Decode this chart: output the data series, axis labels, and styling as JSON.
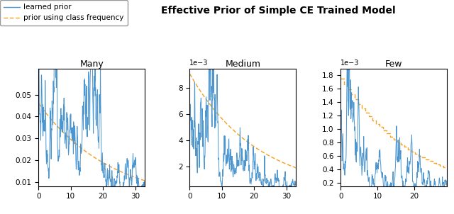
{
  "title": "Effective Prior of Simple CE Trained Model",
  "title_fontsize": 10,
  "title_fontweight": "bold",
  "subtitles": [
    "Many",
    "Medium",
    "Few"
  ],
  "legend_labels": [
    "learned prior",
    "prior using class frequency"
  ],
  "line_color": "#4c96d0",
  "dash_color": "#f5a020",
  "many_xlim": [
    0,
    33
  ],
  "many_ylim": [
    0.008,
    0.062
  ],
  "many_yticks": [
    0.01,
    0.02,
    0.03,
    0.04,
    0.05
  ],
  "medium_xlim": [
    0,
    33
  ],
  "medium_ylim": [
    0.0005,
    0.0095
  ],
  "medium_yticks": [
    0.002,
    0.004,
    0.006,
    0.008
  ],
  "few_xlim": [
    0,
    29
  ],
  "few_ylim": [
    0.00015,
    0.0019
  ],
  "few_yticks": [
    0.0002,
    0.0004,
    0.0006,
    0.0008,
    0.001,
    0.0012,
    0.0014,
    0.0016,
    0.0018
  ]
}
